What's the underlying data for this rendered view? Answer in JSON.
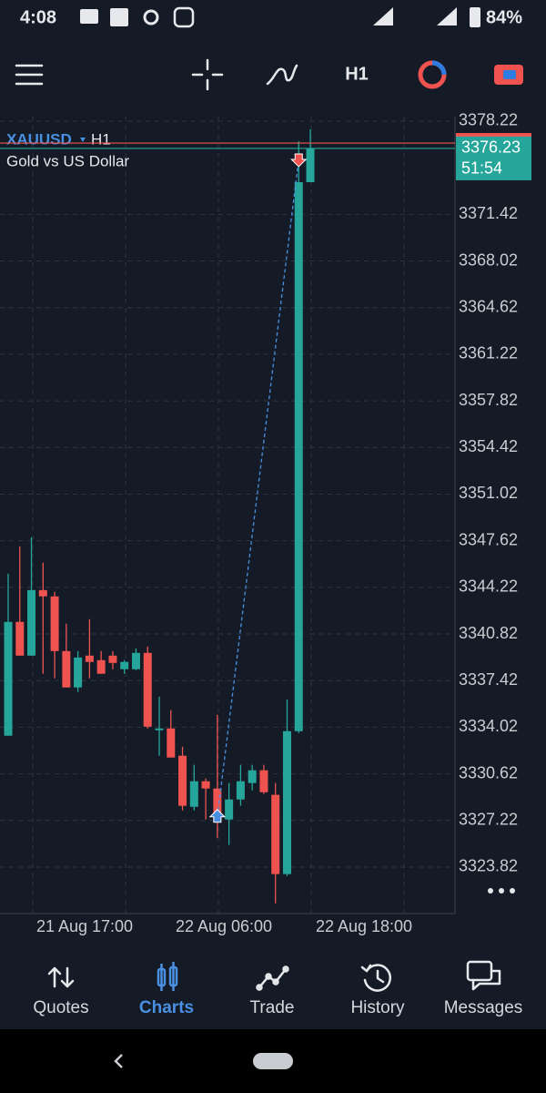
{
  "status_bar": {
    "time": "4:08",
    "battery": "84%"
  },
  "toolbar": {
    "timeframe": "H1"
  },
  "chart_data": {
    "type": "candlestick",
    "symbol": "XAUUSD",
    "timeframe": "H1",
    "description": "Gold vs US Dollar",
    "open": [
      3333.4,
      3341.7,
      3339.24,
      3344.02,
      3343.56,
      3339.57,
      3336.92,
      3339.24,
      3338.91,
      3339.24,
      3338.25,
      3338.25,
      3339.44,
      3333.8,
      3333.93,
      3331.94,
      3328.22,
      3330.08,
      3329.55,
      3327.29,
      3328.75,
      3329.95,
      3330.88,
      3329.09,
      3323.31,
      3333.73,
      3373.77
    ],
    "high": [
      3345.22,
      3347.21,
      3347.87,
      3346.02,
      3343.89,
      3341.57,
      3339.57,
      3341.9,
      3339.57,
      3339.57,
      3338.91,
      3339.77,
      3339.91,
      3336.25,
      3335.26,
      3332.6,
      3331.28,
      3330.28,
      3334.93,
      3329.95,
      3331.28,
      3331.28,
      3331.28,
      3329.95,
      3336.05,
      3376.76,
      3377.62
    ],
    "low": [
      3333.4,
      3339.24,
      3339.24,
      3337.92,
      3337.58,
      3336.92,
      3336.59,
      3337.58,
      3337.92,
      3338.25,
      3337.92,
      3338.18,
      3333.93,
      3331.94,
      3331.81,
      3327.95,
      3327.95,
      3327.29,
      3325.96,
      3325.43,
      3328.29,
      3329.42,
      3329.15,
      3321.18,
      3323.17,
      3333.6,
      3373.77
    ],
    "close": [
      3341.7,
      3339.24,
      3344.02,
      3343.56,
      3339.57,
      3336.92,
      3339.1,
      3338.78,
      3337.92,
      3338.71,
      3338.78,
      3339.44,
      3334.06,
      3333.93,
      3331.81,
      3328.29,
      3330.08,
      3329.55,
      3327.29,
      3328.75,
      3330.08,
      3330.88,
      3329.28,
      3323.31,
      3333.73,
      3373.77,
      3376.23
    ],
    "ylim": [
      3320.43,
      3378.55
    ],
    "yticks": [
      3378.22,
      3371.42,
      3368.02,
      3364.62,
      3361.22,
      3357.82,
      3354.42,
      3351.02,
      3347.62,
      3344.22,
      3340.82,
      3337.42,
      3334.02,
      3330.62,
      3327.22,
      3323.82
    ],
    "x_labels": [
      "21 Aug 17:00",
      "22 Aug 06:00",
      "22 Aug 18:00"
    ],
    "bid": 3376.23,
    "ask": 3376.62,
    "countdown": "51:54",
    "trade": {
      "open_price": 3327.49,
      "close_price": 3375.43
    },
    "colors": {
      "up": "#26a69a",
      "down": "#ef5350"
    },
    "grid": true
  },
  "nav": {
    "items": [
      "Quotes",
      "Charts",
      "Trade",
      "History",
      "Messages"
    ],
    "active": 1
  }
}
